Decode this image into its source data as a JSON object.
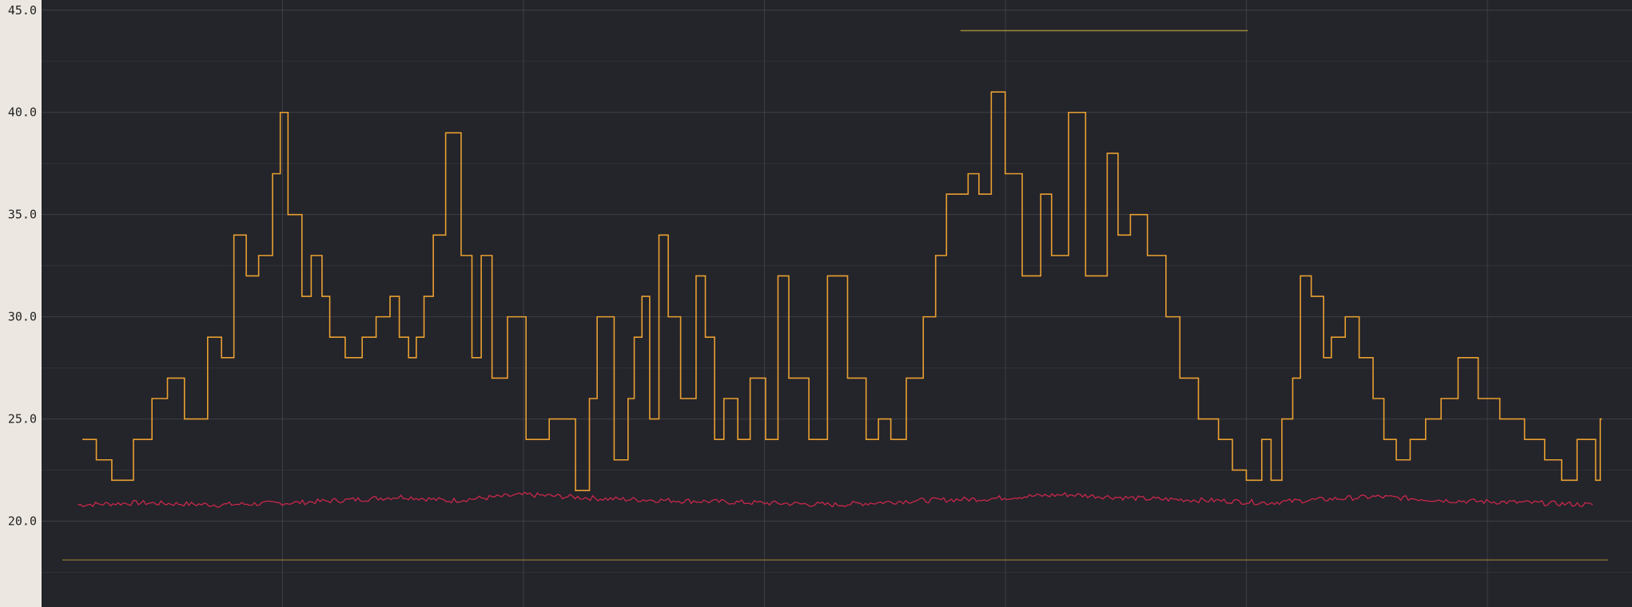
{
  "chart_data": {
    "type": "line",
    "title": "",
    "xlabel": "",
    "ylabel": "",
    "ylim": [
      15.8,
      45.5
    ],
    "yticks": [
      20,
      25,
      30,
      35,
      40,
      45
    ],
    "ytick_labels": [
      "20.0",
      "25.0",
      "30.0",
      "35.0",
      "40.0",
      "45.0"
    ],
    "xlim": [
      0,
      100
    ],
    "grid": true,
    "background": "#24242b",
    "gridline_color": "#4a4a52",
    "reference_lines": [
      {
        "y": 44.0,
        "x": [
          58.1,
          76.7
        ],
        "color": "#a08a3a"
      },
      {
        "y": 18.1,
        "x": [
          0,
          100
        ],
        "color": "#7c6a30"
      }
    ],
    "series": [
      {
        "color": "#e8a030",
        "style": "step",
        "x": [
          1.3,
          2.2,
          3.2,
          4.6,
          5.8,
          6.8,
          7.9,
          9.4,
          10.3,
          11.1,
          11.9,
          12.7,
          13.6,
          14.1,
          14.6,
          15.5,
          16.1,
          16.8,
          17.3,
          18.3,
          19.4,
          20.3,
          21.2,
          21.8,
          22.4,
          22.9,
          23.4,
          24.0,
          24.8,
          25.8,
          26.5,
          27.1,
          27.8,
          28.8,
          30.0,
          31.5,
          33.2,
          34.1,
          34.6,
          35.7,
          36.6,
          37.0,
          37.5,
          38.0,
          38.6,
          39.2,
          40.0,
          41.0,
          41.6,
          42.2,
          42.8,
          43.7,
          44.5,
          45.5,
          46.3,
          47.0,
          48.3,
          49.5,
          50.8,
          52.0,
          52.8,
          53.6,
          54.6,
          55.7,
          56.5,
          57.2,
          58.6,
          59.3,
          60.1,
          61.0,
          62.1,
          63.3,
          64.0,
          65.1,
          66.2,
          67.6,
          68.3,
          69.1,
          70.2,
          71.4,
          72.3,
          73.5,
          74.8,
          75.7,
          76.6,
          77.6,
          78.2,
          78.9,
          79.6,
          80.1,
          80.8,
          81.6,
          82.1,
          83.0,
          83.9,
          84.8,
          85.5,
          86.3,
          87.2,
          88.2,
          89.2,
          90.3,
          91.6,
          93.0,
          94.6,
          95.9,
          97.0,
          98.0,
          99.2,
          99.5
        ],
        "y": [
          24,
          23,
          22,
          24,
          26,
          27,
          25,
          29,
          28,
          34,
          32,
          33,
          37,
          40,
          35,
          31,
          33,
          31,
          29,
          28,
          29,
          30,
          31,
          29,
          28,
          29,
          31,
          34,
          39,
          33,
          28,
          33,
          27,
          30,
          24,
          25,
          21.5,
          26,
          30,
          23,
          26,
          29,
          31,
          25,
          34,
          30,
          26,
          32,
          29,
          24,
          26,
          24,
          27,
          24,
          32,
          27,
          24,
          32,
          27,
          24,
          25,
          24,
          27,
          30,
          33,
          36,
          37,
          36,
          41,
          37,
          32,
          36,
          33,
          40,
          32,
          38,
          34,
          35,
          33,
          30,
          27,
          25,
          24,
          22.5,
          22,
          24,
          22,
          25,
          27,
          32,
          31,
          28,
          29,
          30,
          28,
          26,
          24,
          23,
          24,
          25,
          26,
          28,
          26,
          25,
          24,
          23,
          22,
          24,
          22,
          25
        ]
      },
      {
        "color": "#c8284a",
        "style": "line",
        "x": [
          1,
          5,
          10,
          15,
          20,
          22,
          25,
          30,
          35,
          40,
          45,
          50,
          55,
          60,
          62,
          65,
          70,
          75,
          78,
          80,
          85,
          90,
          95,
          99
        ],
        "y": [
          20.8,
          20.9,
          20.8,
          20.9,
          21.1,
          21.2,
          21.0,
          21.3,
          21.1,
          21.0,
          20.9,
          20.8,
          21.0,
          21.1,
          21.2,
          21.3,
          21.1,
          21.0,
          20.9,
          21.0,
          21.2,
          21.0,
          20.9,
          20.8
        ]
      }
    ]
  }
}
